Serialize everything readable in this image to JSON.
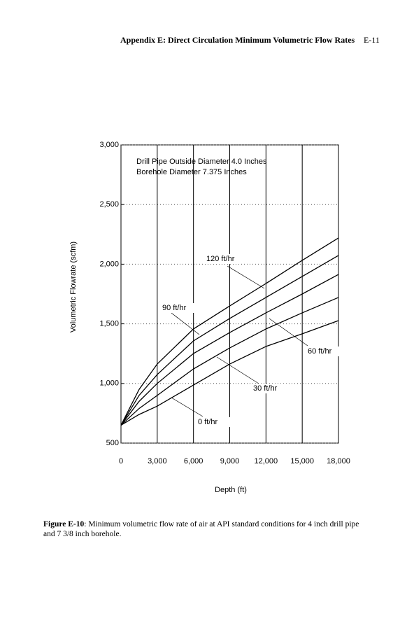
{
  "header": {
    "title": "Appendix E: Direct Circulation Minimum Volumetric Flow Rates",
    "page": "E-11"
  },
  "chart_data": {
    "type": "line",
    "annotations": [
      "Drill Pipe Outside Diameter 4.0 Inches",
      "Borehole Diameter 7.375 Inches"
    ],
    "x_label": "Depth (ft)",
    "y_label": "Volumetric Flowrate (scfm)",
    "x": [
      0,
      1500,
      3000,
      6000,
      9000,
      12000,
      15000,
      18000
    ],
    "series": [
      {
        "name": "0 ft/hr",
        "color": "#000000",
        "values": [
          650,
          740,
          810,
          987,
          1163,
          1310,
          1416,
          1527
        ]
      },
      {
        "name": "30 ft/hr",
        "color": "#000000",
        "values": [
          650,
          790,
          900,
          1122,
          1298,
          1457,
          1592,
          1721
        ]
      },
      {
        "name": "60 ft/hr",
        "color": "#000000",
        "values": [
          650,
          850,
          1000,
          1251,
          1427,
          1592,
          1750,
          1914
        ]
      },
      {
        "name": "90 ft/hr",
        "color": "#000000",
        "values": [
          650,
          900,
          1075,
          1357,
          1545,
          1721,
          1897,
          2073
        ]
      },
      {
        "name": "120 ft/hr",
        "color": "#000000",
        "values": [
          650,
          950,
          1163,
          1457,
          1650,
          1838,
          2032,
          2220
        ]
      }
    ],
    "xlim": [
      0,
      18000
    ],
    "xticks": [
      0,
      {
        "value": 3000,
        "label": "3,000"
      },
      {
        "value": 6000,
        "label": "6,000"
      },
      {
        "value": 9000,
        "label": "9,000"
      },
      {
        "value": 12000,
        "label": "12,000"
      },
      {
        "value": 15000,
        "label": "15,000"
      },
      {
        "value": 18000,
        "label": "18,000"
      }
    ],
    "ylim": [
      500,
      3000
    ],
    "yticks": [
      500,
      {
        "value": 1000,
        "label": "1,000"
      },
      {
        "value": 1500,
        "label": "1,500"
      },
      {
        "value": 2000,
        "label": "2,000"
      },
      {
        "value": 2500,
        "label": "2,500"
      },
      {
        "value": 3000,
        "label": "3,000"
      }
    ],
    "grid": true
  },
  "caption": {
    "label": "Figure E-10",
    "text": ": Minimum volumetric flow rate of air at API standard conditions for 4 inch drill pipe and 7 3/8 inch borehole."
  }
}
